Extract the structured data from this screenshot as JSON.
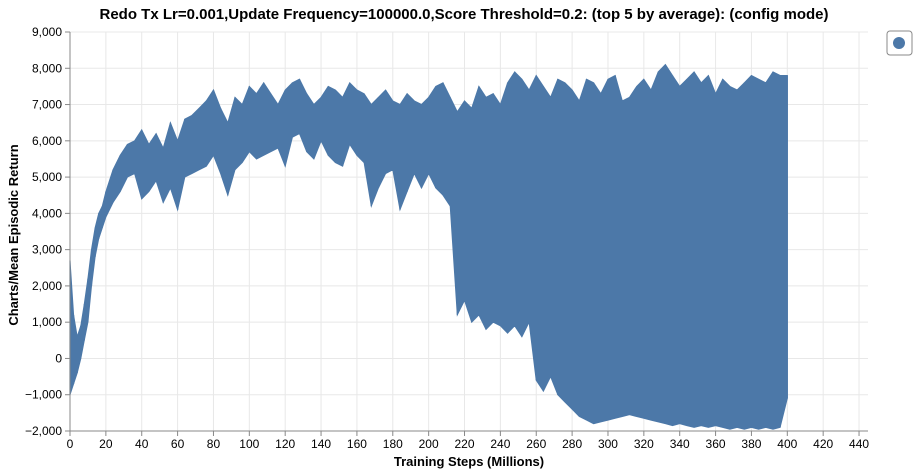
{
  "chart_data": {
    "type": "line",
    "title": "Redo Tx Lr=0.001,Update Frequency=100000.0,Score Threshold=0.2: (top 5 by average): (config mode)",
    "xlabel": "Training Steps (Millions)",
    "ylabel": "Charts/Mean Episodic Return",
    "xlim": [
      0,
      445
    ],
    "ylim": [
      -2000,
      9000
    ],
    "xticks": [
      0,
      20,
      40,
      60,
      80,
      100,
      120,
      140,
      160,
      180,
      200,
      220,
      240,
      260,
      280,
      300,
      320,
      340,
      360,
      380,
      400,
      420,
      440
    ],
    "yticks": [
      -2000,
      -1000,
      0,
      1000,
      2000,
      3000,
      4000,
      5000,
      6000,
      7000,
      8000,
      9000
    ],
    "xtick_labels": [
      "0",
      "20",
      "40",
      "60",
      "80",
      "100",
      "120",
      "140",
      "160",
      "180",
      "200",
      "220",
      "240",
      "260",
      "280",
      "300",
      "320",
      "340",
      "360",
      "380",
      "400",
      "420",
      "440"
    ],
    "ytick_labels": [
      "−2,000",
      "−1,000",
      "0",
      "1,000",
      "2,000",
      "3,000",
      "4,000",
      "5,000",
      "6,000",
      "7,000",
      "8,000",
      "9,000"
    ],
    "grid": true,
    "legend_position": "top-right",
    "series": [
      {
        "color": "#4c78a8",
        "x": [
          0,
          2,
          4,
          6,
          8,
          10,
          12,
          14,
          16,
          18,
          20,
          24,
          28,
          32,
          36,
          40,
          44,
          48,
          52,
          56,
          60,
          64,
          68,
          72,
          76,
          80,
          84,
          88,
          92,
          96,
          100,
          104,
          108,
          112,
          116,
          120,
          124,
          128,
          132,
          136,
          140,
          144,
          148,
          152,
          156,
          160,
          164,
          168,
          172,
          176,
          180,
          184,
          188,
          192,
          196,
          200,
          204,
          208,
          212,
          216,
          220,
          224,
          228,
          232,
          236,
          240,
          244,
          248,
          252,
          256,
          260,
          264,
          268,
          272,
          276,
          280,
          284,
          288,
          292,
          296,
          300,
          304,
          308,
          312,
          316,
          320,
          324,
          328,
          332,
          336,
          340,
          344,
          348,
          352,
          356,
          360,
          364,
          368,
          372,
          376,
          380,
          384,
          388,
          392,
          396,
          400
        ],
        "y_high": [
          2700,
          1200,
          600,
          900,
          1500,
          2200,
          3000,
          3600,
          4000,
          4200,
          4600,
          5200,
          5600,
          5900,
          6000,
          6300,
          5900,
          6200,
          5800,
          6500,
          6000,
          6600,
          6700,
          6900,
          7100,
          7400,
          6900,
          6500,
          7200,
          7000,
          7500,
          7300,
          7600,
          7300,
          7000,
          7400,
          7600,
          7700,
          7300,
          7000,
          7200,
          7500,
          7400,
          7200,
          7600,
          7400,
          7300,
          7000,
          7200,
          7400,
          7100,
          7000,
          7300,
          7100,
          7000,
          7200,
          7500,
          7600,
          7200,
          6800,
          7100,
          6900,
          7500,
          7200,
          7300,
          7000,
          7600,
          7900,
          7700,
          7400,
          7800,
          7500,
          7200,
          7700,
          7600,
          7400,
          7100,
          7700,
          7600,
          7300,
          7700,
          7800,
          7100,
          7200,
          7500,
          7700,
          7400,
          7900,
          8100,
          7800,
          7500,
          7700,
          7900,
          7600,
          7800,
          7300,
          7700,
          7500,
          7400,
          7600,
          7800,
          7700,
          7600,
          7900,
          7800,
          7800
        ],
        "y_low": [
          -1000,
          -700,
          -400,
          0,
          500,
          1000,
          2000,
          2800,
          3300,
          3600,
          3900,
          4300,
          4600,
          5000,
          5100,
          4400,
          4600,
          4900,
          4300,
          4700,
          4100,
          5000,
          5100,
          5200,
          5300,
          5600,
          5100,
          4500,
          5200,
          5400,
          5700,
          5500,
          5600,
          5700,
          5800,
          5300,
          6100,
          6200,
          5700,
          5500,
          6000,
          5600,
          5400,
          5300,
          5900,
          5600,
          5400,
          4200,
          4700,
          5100,
          5200,
          4100,
          4600,
          5100,
          4700,
          5100,
          4700,
          4500,
          4200,
          1200,
          1600,
          1000,
          1200,
          800,
          1000,
          900,
          700,
          900,
          600,
          1000,
          -600,
          -900,
          -500,
          -1000,
          -1200,
          -1400,
          -1600,
          -1700,
          -1800,
          -1750,
          -1700,
          -1650,
          -1600,
          -1550,
          -1600,
          -1650,
          -1700,
          -1750,
          -1800,
          -1850,
          -1800,
          -1850,
          -1900,
          -1850,
          -1900,
          -1850,
          -1900,
          -1950,
          -1900,
          -1950,
          -1900,
          -1950,
          -1900,
          -1950,
          -1900,
          -1100
        ]
      }
    ]
  }
}
